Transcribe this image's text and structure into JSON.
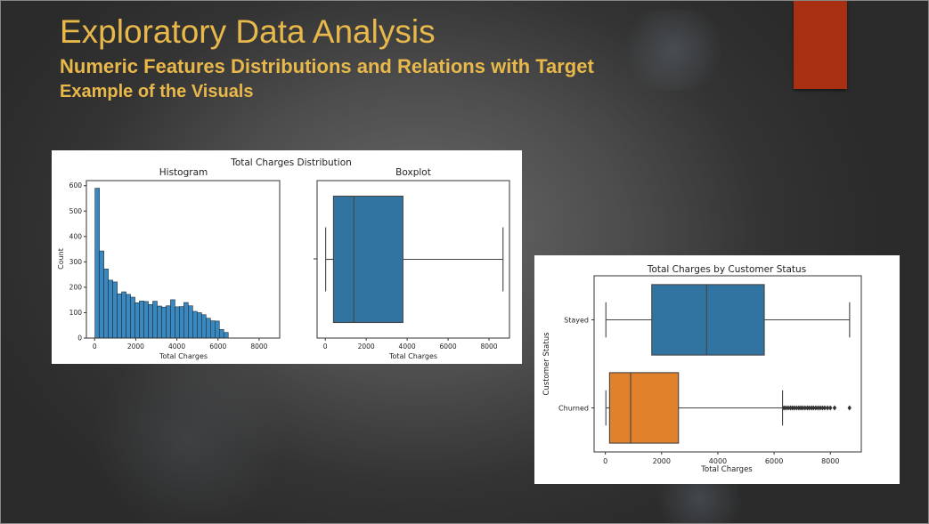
{
  "slide": {
    "title": "Exploratory Data Analysis",
    "subtitle": "Numeric Features Distributions and Relations with Target",
    "subtitle2": "Example of the Visuals",
    "title_color": "#e8b84a",
    "accent_color": "#a92f12"
  },
  "chart_data": [
    {
      "type": "bar",
      "suptitle": "Total Charges Distribution",
      "title": "Histogram",
      "xlabel": "Total Charges",
      "ylabel": "Count",
      "xlim": [
        -400,
        9000
      ],
      "ylim": [
        0,
        620
      ],
      "xticks": [
        0,
        2000,
        4000,
        6000,
        8000
      ],
      "yticks": [
        0,
        100,
        200,
        300,
        400,
        500,
        600
      ],
      "color": "#3a88c0",
      "bin_start": 18.8,
      "bin_width": 216,
      "values": [
        590,
        343,
        272,
        228,
        221,
        174,
        182,
        172,
        161,
        139,
        146,
        144,
        132,
        145,
        126,
        122,
        127,
        151,
        123,
        124,
        140,
        127,
        105,
        100,
        92,
        78,
        68,
        67,
        34,
        22
      ]
    },
    {
      "type": "box",
      "title": "Boxplot",
      "xlabel": "Total Charges",
      "xlim": [
        -400,
        9000
      ],
      "xticks": [
        0,
        2000,
        4000,
        6000,
        8000
      ],
      "color": "#3274a1",
      "whisker_low": 18.8,
      "q1": 401,
      "median": 1397,
      "q3": 3794,
      "whisker_high": 8684
    },
    {
      "type": "box",
      "title": "Total Charges by Customer Status",
      "xlabel": "Total Charges",
      "ylabel": "Customer Status",
      "xlim": [
        -400,
        9100
      ],
      "xticks": [
        0,
        2000,
        4000,
        6000,
        8000
      ],
      "categories": [
        "Stayed",
        "Churned"
      ],
      "series": [
        {
          "name": "Stayed",
          "color": "#3274a1",
          "whisker_low": 18.8,
          "q1": 1650,
          "median": 3600,
          "q3": 5650,
          "whisker_high": 8684,
          "outliers": []
        },
        {
          "name": "Churned",
          "color": "#e1812c",
          "whisker_low": 18.8,
          "q1": 150,
          "median": 900,
          "q3": 2600,
          "whisker_high": 6300,
          "outliers": [
            6350,
            6420,
            6500,
            6580,
            6650,
            6720,
            6800,
            6880,
            6950,
            7020,
            7100,
            7180,
            7250,
            7330,
            7400,
            7480,
            7560,
            7640,
            7720,
            7800,
            7900,
            8000,
            8150,
            8680
          ]
        }
      ]
    }
  ]
}
